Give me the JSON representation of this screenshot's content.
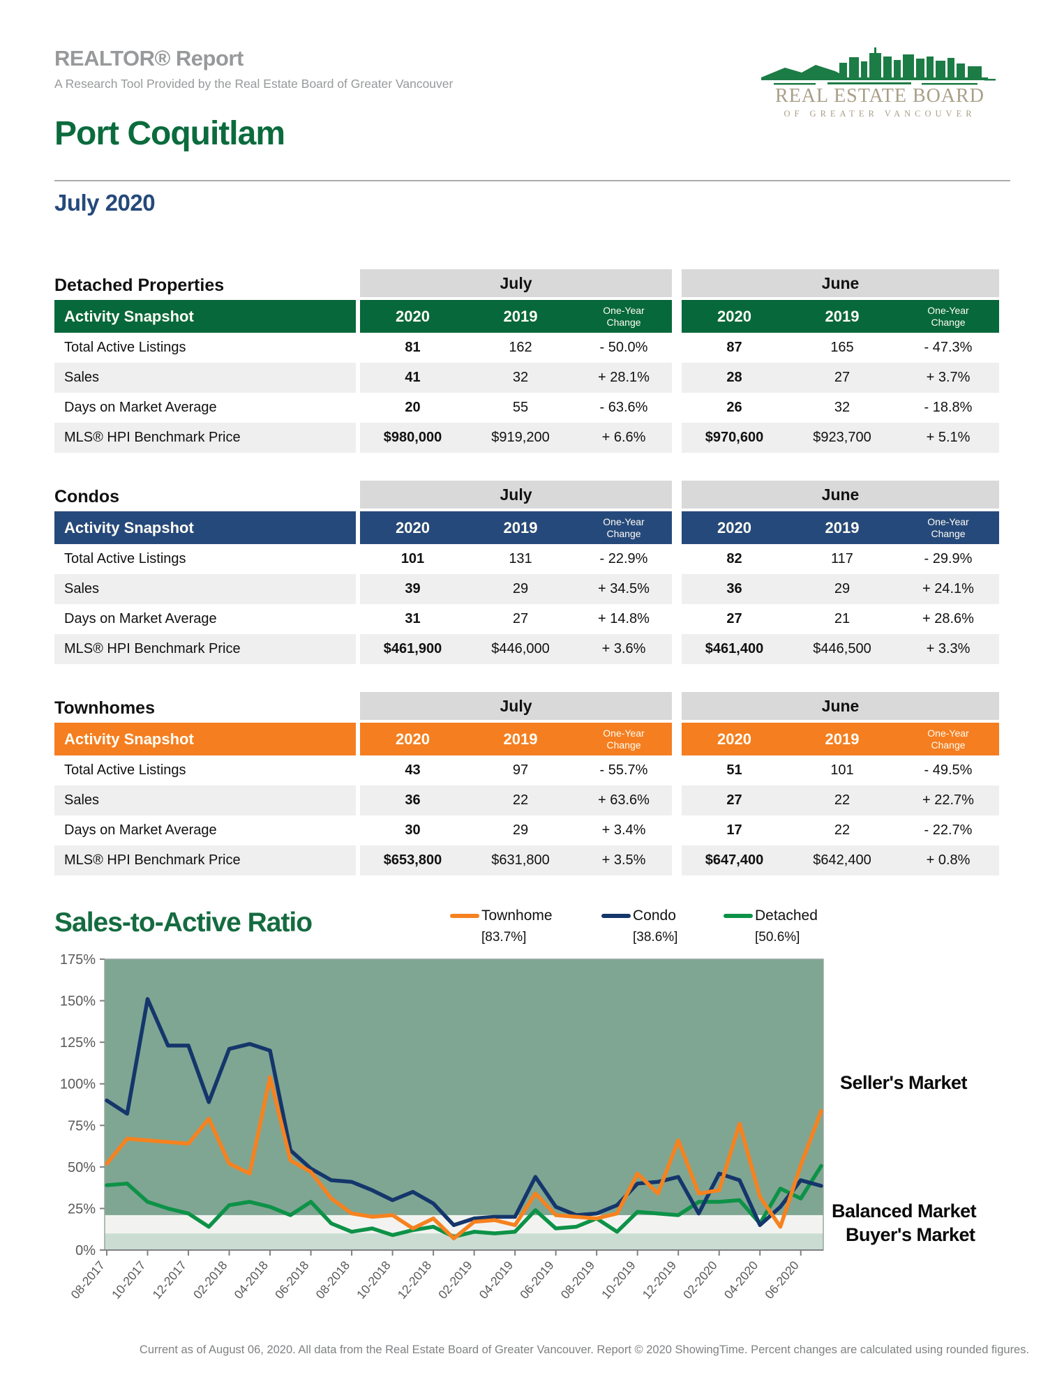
{
  "header": {
    "report_title": "REALTOR® Report",
    "report_subtitle": "A Research Tool Provided by the Real Estate Board of Greater Vancouver",
    "area_title": "Port Coquitlam",
    "period": "July 2020",
    "logo": {
      "line1": "REAL ESTATE BOARD",
      "line2": "OF GREATER VANCOUVER",
      "icon": "vancouver-skyline"
    }
  },
  "tables": [
    {
      "section": "Detached Properties",
      "accent": "#07683B",
      "snapshot_label": "Activity Snapshot",
      "month_groups": [
        "July",
        "June"
      ],
      "col_headers": [
        "2020",
        "2019",
        "One-Year Change"
      ],
      "rows": [
        {
          "label": "Total Active Listings",
          "july": [
            "81",
            "162",
            "- 50.0%"
          ],
          "june": [
            "87",
            "165",
            "- 47.3%"
          ]
        },
        {
          "label": "Sales",
          "july": [
            "41",
            "32",
            "+ 28.1%"
          ],
          "june": [
            "28",
            "27",
            "+ 3.7%"
          ]
        },
        {
          "label": "Days on Market Average",
          "july": [
            "20",
            "55",
            "- 63.6%"
          ],
          "june": [
            "26",
            "32",
            "- 18.8%"
          ]
        },
        {
          "label": "MLS® HPI Benchmark Price",
          "july": [
            "$980,000",
            "$919,200",
            "+ 6.6%"
          ],
          "june": [
            "$970,600",
            "$923,700",
            "+ 5.1%"
          ]
        }
      ]
    },
    {
      "section": "Condos",
      "accent": "#26497B",
      "snapshot_label": "Activity Snapshot",
      "month_groups": [
        "July",
        "June"
      ],
      "col_headers": [
        "2020",
        "2019",
        "One-Year Change"
      ],
      "rows": [
        {
          "label": "Total Active Listings",
          "july": [
            "101",
            "131",
            "- 22.9%"
          ],
          "june": [
            "82",
            "117",
            "- 29.9%"
          ]
        },
        {
          "label": "Sales",
          "july": [
            "39",
            "29",
            "+ 34.5%"
          ],
          "june": [
            "36",
            "29",
            "+ 24.1%"
          ]
        },
        {
          "label": "Days on Market Average",
          "july": [
            "31",
            "27",
            "+ 14.8%"
          ],
          "june": [
            "27",
            "21",
            "+ 28.6%"
          ]
        },
        {
          "label": "MLS® HPI Benchmark Price",
          "july": [
            "$461,900",
            "$446,000",
            "+ 3.6%"
          ],
          "june": [
            "$461,400",
            "$446,500",
            "+ 3.3%"
          ]
        }
      ]
    },
    {
      "section": "Townhomes",
      "accent": "#F57E20",
      "snapshot_label": "Activity Snapshot",
      "month_groups": [
        "July",
        "June"
      ],
      "col_headers": [
        "2020",
        "2019",
        "One-Year Change"
      ],
      "rows": [
        {
          "label": "Total Active Listings",
          "july": [
            "43",
            "97",
            "- 55.7%"
          ],
          "june": [
            "51",
            "101",
            "- 49.5%"
          ]
        },
        {
          "label": "Sales",
          "july": [
            "36",
            "22",
            "+ 63.6%"
          ],
          "june": [
            "27",
            "22",
            "+ 22.7%"
          ]
        },
        {
          "label": "Days on Market Average",
          "july": [
            "30",
            "29",
            "+ 3.4%"
          ],
          "june": [
            "17",
            "22",
            "- 22.7%"
          ]
        },
        {
          "label": "MLS® HPI Benchmark Price",
          "july": [
            "$653,800",
            "$631,800",
            "+ 3.5%"
          ],
          "june": [
            "$647,400",
            "$642,400",
            "+ 0.8%"
          ]
        }
      ]
    }
  ],
  "chart_data": {
    "type": "line",
    "title": "Sales-to-Active Ratio",
    "ylim": [
      0,
      175
    ],
    "ytick_step": 25,
    "ytick_suffix": "%",
    "xtick_every": 2,
    "legend_position": "top-right",
    "grid": false,
    "x": [
      "08-2017",
      "09-2017",
      "10-2017",
      "11-2017",
      "12-2017",
      "01-2018",
      "02-2018",
      "03-2018",
      "04-2018",
      "05-2018",
      "06-2018",
      "07-2018",
      "08-2018",
      "09-2018",
      "10-2018",
      "11-2018",
      "12-2018",
      "01-2019",
      "02-2019",
      "03-2019",
      "04-2019",
      "05-2019",
      "06-2019",
      "07-2019",
      "08-2019",
      "09-2019",
      "10-2019",
      "11-2019",
      "12-2019",
      "01-2020",
      "02-2020",
      "03-2020",
      "04-2020",
      "05-2020",
      "06-2020",
      "07-2020"
    ],
    "series": [
      {
        "name": "Townhome",
        "current_label": "[83.7%]",
        "color": "#F6821F",
        "values": [
          52,
          67,
          66,
          65,
          64,
          79,
          52,
          46,
          104,
          54,
          47,
          31,
          22,
          20,
          21,
          13,
          19,
          7,
          17,
          18,
          15,
          34,
          21,
          20,
          19,
          22,
          46,
          34,
          66,
          34,
          36,
          76,
          32,
          14,
          51,
          83.7
        ]
      },
      {
        "name": "Condo",
        "current_label": "[38.6%]",
        "color": "#15366B",
        "values": [
          90,
          82,
          151,
          123,
          123,
          89,
          121,
          124,
          120,
          60,
          49,
          42,
          41,
          36,
          30,
          35,
          28,
          15,
          19,
          20,
          20,
          44,
          26,
          21,
          22,
          27,
          40,
          41,
          44,
          22,
          46,
          42,
          15,
          26,
          42,
          38.6
        ]
      },
      {
        "name": "Detached",
        "current_label": "[50.6%]",
        "color": "#0D9247",
        "values": [
          39,
          40,
          29,
          25,
          22,
          14,
          27,
          29,
          26,
          21,
          29,
          16,
          11,
          13,
          9,
          12,
          14,
          8,
          11,
          10,
          11,
          24,
          13,
          14,
          19,
          11,
          23,
          22,
          21,
          29,
          29,
          30,
          16,
          37,
          31,
          50.6
        ]
      }
    ],
    "bands": [
      {
        "label": "Seller's Market",
        "from": 21,
        "to": 175,
        "color": "#7FA693"
      },
      {
        "label": "Balanced Market",
        "from": 10,
        "to": 21,
        "color": "#F2F3F1"
      },
      {
        "label": "Buyer's Market",
        "from": 0,
        "to": 10,
        "color": "#CBDDD2"
      }
    ]
  },
  "footer": {
    "note": "Current as of August 06, 2020. All data from the Real Estate Board of Greater Vancouver. Report © 2020 ShowingTime. Percent changes are calculated using rounded figures."
  }
}
